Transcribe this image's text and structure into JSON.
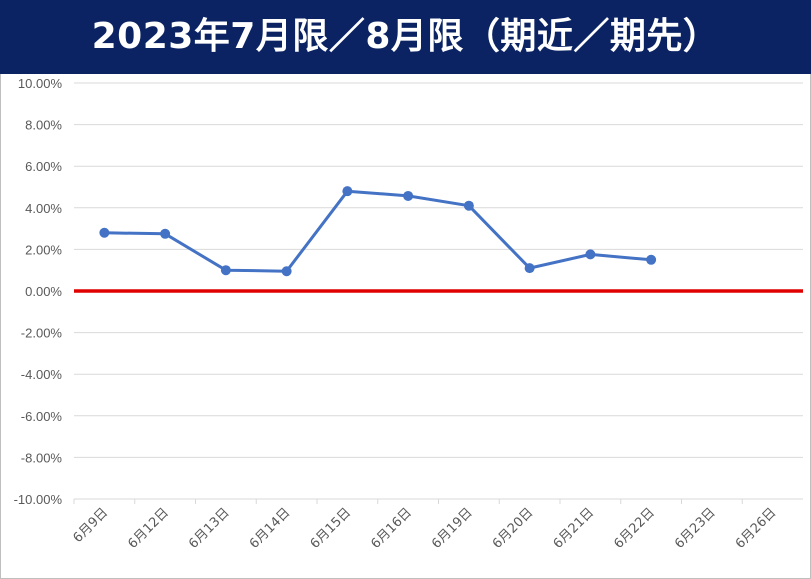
{
  "title": "2023年7月限／8月限（期近／期先）",
  "colors": {
    "title_bg": "#0b2362",
    "title_text": "#ffffff",
    "series": "#4472c4",
    "zero_line": "#e00000",
    "grid": "#d9d9d9",
    "tick_text": "#595959"
  },
  "chart_data": {
    "type": "line",
    "title": "2023年7月限／8月限（期近／期先）",
    "xlabel": "",
    "ylabel": "",
    "categories": [
      "6月9日",
      "6月12日",
      "6月13日",
      "6月14日",
      "6月15日",
      "6月16日",
      "6月19日",
      "6月20日",
      "6月21日",
      "6月22日",
      "6月23日",
      "6月26日"
    ],
    "series": [
      {
        "values": [
          2.8,
          2.75,
          1.0,
          0.95,
          4.8,
          4.57,
          4.1,
          1.1,
          1.76,
          1.5,
          null,
          null
        ]
      }
    ],
    "ylim": [
      -10,
      10
    ],
    "ytick_step": 2,
    "ytick_labels": [
      "10.00%",
      "8.00%",
      "6.00%",
      "4.00%",
      "2.00%",
      "0.00%",
      "-2.00%",
      "-4.00%",
      "-6.00%",
      "-8.00%",
      "-10.00%"
    ],
    "zero_line": true,
    "grid": true,
    "legend": "none"
  }
}
